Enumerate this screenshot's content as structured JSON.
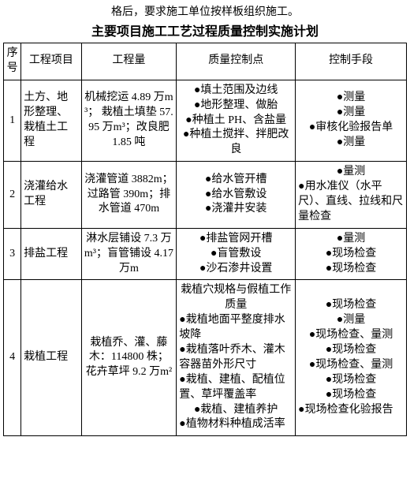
{
  "precap": "格后，要求施工单位按样板组织施工。",
  "caption": "主要项目施工工艺过程质量控制实施计划",
  "headers": {
    "col1": "序号",
    "col2": "工程项目",
    "col3": "工程量",
    "col4": "质量控制点",
    "col5": "控制手段"
  },
  "rows": {
    "r1": {
      "num": "1",
      "project": "土方、地形整理、栽植土工程",
      "qty": "机械挖运 4.89 万m³；\n栽植土填垫 57.95 万m³；改良肥 1.85 吨",
      "pts": [
        "●填土范围及边线",
        "●地形整理、做胎",
        "●种植土 PH、含盐量",
        "●种植土搅拌、拌肥改良"
      ],
      "ctrl": [
        "●测量",
        "●测量",
        "●审核化验报告单",
        "●测量"
      ]
    },
    "r2": {
      "num": "2",
      "project": "浇灌给水工程",
      "qty": "浇灌管道 3882m；过路管 390m；排水管道 470m",
      "pts": [
        "●给水管开槽",
        "●给水管敷设",
        "●浇灌井安装"
      ],
      "ctrl": [
        "●量测",
        "●用水准仪（水平尺）、直线、拉线和尺量检查"
      ]
    },
    "r3": {
      "num": "3",
      "project": "排盐工程",
      "qty": "淋水层铺设 7.3 万m³；盲管铺设 4.17 万m",
      "pts": [
        "●排盐管网开槽",
        "●盲管敷设",
        "●沙石渗井设置"
      ],
      "ctrl": [
        "●量测",
        "●现场检查",
        "●现场检查"
      ]
    },
    "r4": {
      "num": "4",
      "project": "栽植工程",
      "qty": "栽植乔、灌、藤木：114800 株；花卉草坪 9.2 万m²",
      "pts": [
        "栽植穴规格与假植工作质量",
        "●栽植地面平整度排水坡降",
        "●栽植落叶乔木、灌木容器苗外形尺寸",
        "●栽植、建植、配植位置、草坪覆盖率",
        "●栽植、建植养护",
        "●植物材料种植成活率"
      ],
      "ctrl": [
        "●现场检查",
        "●测量",
        "●现场检查、量测",
        "●现场检查",
        "●现场检查、量测",
        "●现场检查",
        "●现场检查",
        "●现场检查化验报告"
      ]
    }
  }
}
